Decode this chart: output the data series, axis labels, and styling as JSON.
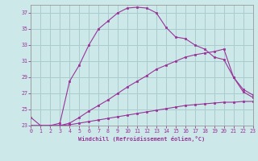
{
  "xlabel": "Windchill (Refroidissement éolien,°C)",
  "bg_color": "#cce8e8",
  "grid_color": "#aacccc",
  "line_color": "#993399",
  "xlim": [
    0,
    23
  ],
  "ylim": [
    23,
    38
  ],
  "xticks": [
    0,
    1,
    2,
    3,
    4,
    5,
    6,
    7,
    8,
    9,
    10,
    11,
    12,
    13,
    14,
    15,
    16,
    17,
    18,
    19,
    20,
    21,
    22,
    23
  ],
  "yticks": [
    23,
    25,
    27,
    29,
    31,
    33,
    35,
    37
  ],
  "line1_x": [
    0,
    1,
    2,
    3,
    4,
    5,
    6,
    7,
    8,
    9,
    10,
    11,
    12,
    13,
    14,
    15,
    16,
    17,
    18,
    19,
    20,
    21,
    22,
    23
  ],
  "line1_y": [
    24.0,
    23.0,
    23.0,
    23.3,
    28.5,
    30.5,
    33.0,
    35.0,
    36.0,
    37.0,
    37.6,
    37.7,
    37.6,
    37.0,
    35.2,
    34.0,
    33.8,
    33.0,
    32.5,
    31.5,
    31.2,
    29.0,
    27.2,
    26.5
  ],
  "line2_x": [
    0,
    1,
    2,
    3,
    4,
    5,
    6,
    7,
    8,
    9,
    10,
    11,
    12,
    13,
    14,
    15,
    16,
    17,
    18,
    19,
    20,
    21,
    22,
    23
  ],
  "line2_y": [
    23.0,
    23.0,
    23.0,
    23.0,
    23.3,
    24.0,
    24.8,
    25.5,
    26.2,
    27.0,
    27.8,
    28.5,
    29.2,
    30.0,
    30.5,
    31.0,
    31.5,
    31.8,
    32.0,
    32.2,
    32.5,
    29.0,
    27.5,
    26.8
  ],
  "line3_x": [
    0,
    1,
    2,
    3,
    4,
    5,
    6,
    7,
    8,
    9,
    10,
    11,
    12,
    13,
    14,
    15,
    16,
    17,
    18,
    19,
    20,
    21,
    22,
    23
  ],
  "line3_y": [
    23.0,
    23.0,
    23.0,
    23.0,
    23.1,
    23.3,
    23.5,
    23.7,
    23.9,
    24.1,
    24.3,
    24.5,
    24.7,
    24.9,
    25.1,
    25.3,
    25.5,
    25.6,
    25.7,
    25.8,
    25.9,
    25.9,
    26.0,
    26.0
  ]
}
